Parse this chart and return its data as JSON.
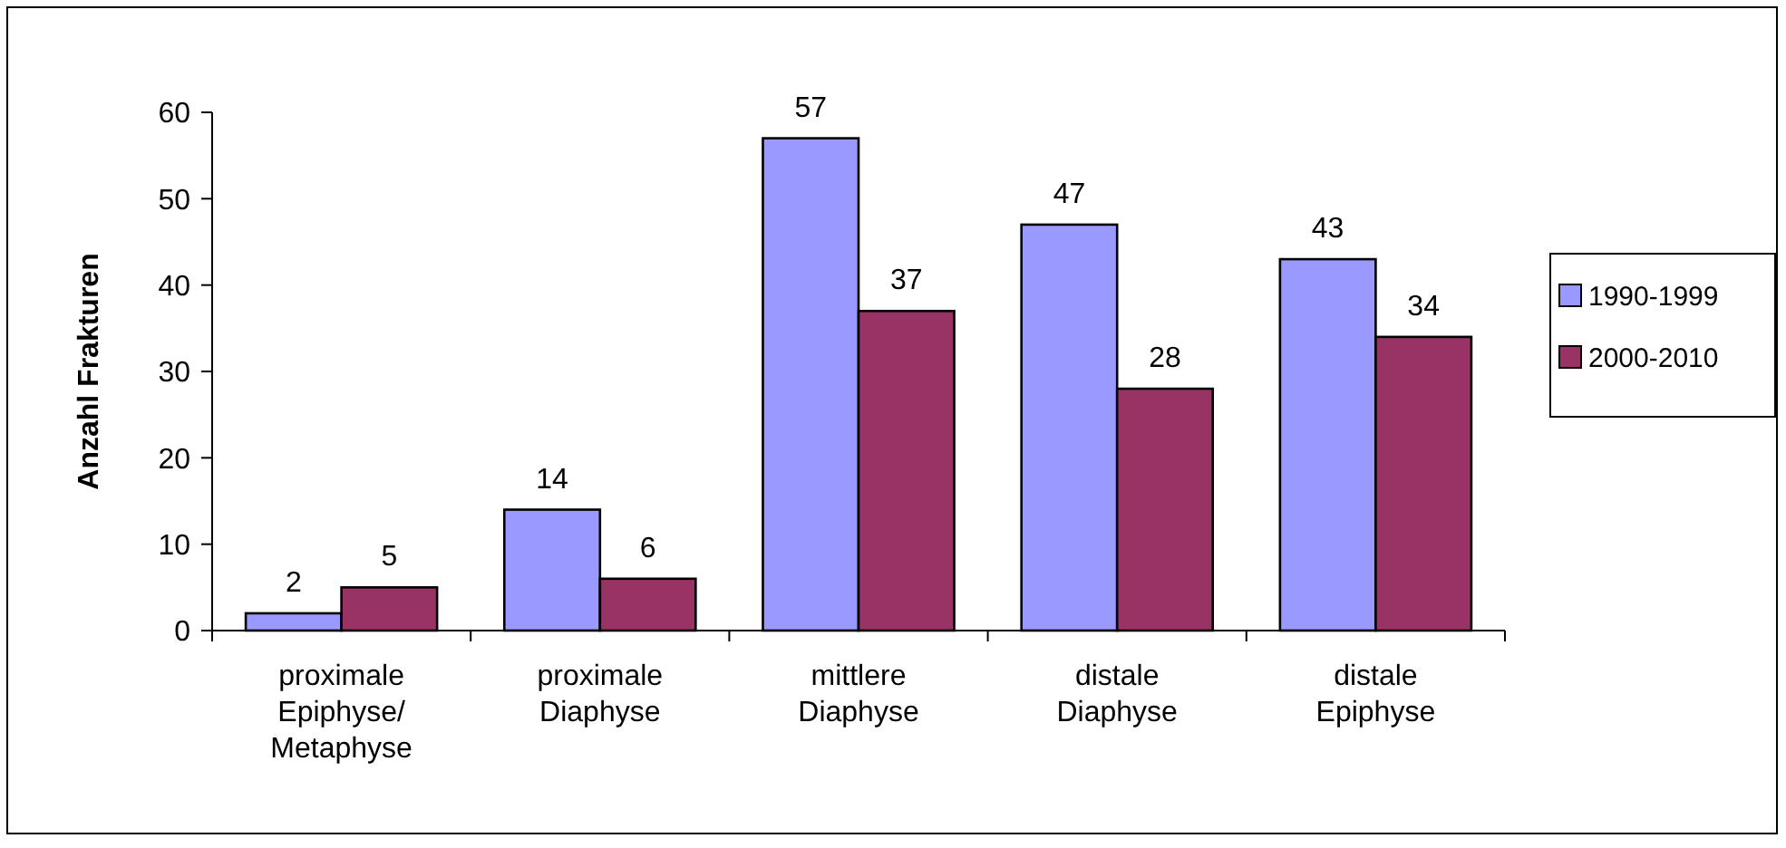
{
  "chart_data": {
    "type": "bar",
    "ylabel": "Anzahl Frakturen",
    "categories": [
      "proximale Epiphyse/ Metaphyse",
      "proximale Diaphyse",
      "mittlere Diaphyse",
      "distale Diaphyse",
      "distale Epiphyse"
    ],
    "series": [
      {
        "name": "1990-1999",
        "color": "#9999ff",
        "values": [
          2,
          14,
          57,
          47,
          43
        ]
      },
      {
        "name": "2000-2010",
        "color": "#993366",
        "values": [
          5,
          6,
          37,
          28,
          34
        ]
      }
    ],
    "ylim": [
      0,
      60
    ],
    "yticks": [
      0,
      10,
      20,
      30,
      40,
      50,
      60
    ],
    "grid": false,
    "legend": "right",
    "data_labels": true
  }
}
